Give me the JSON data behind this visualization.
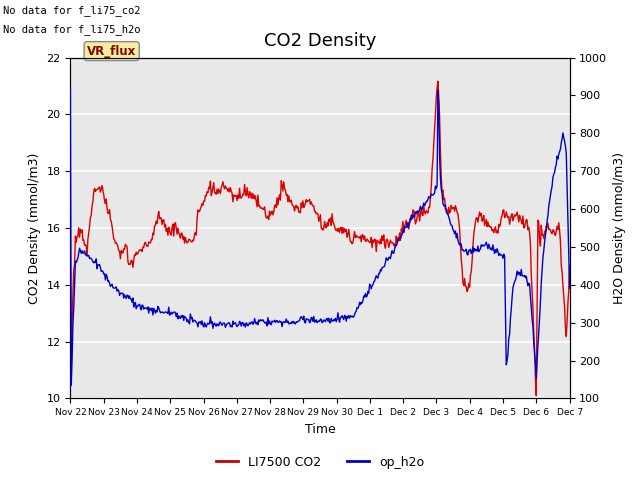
{
  "title": "CO2 Density",
  "xlabel": "Time",
  "ylabel_left": "CO2 Density (mmol/m3)",
  "ylabel_right": "H2O Density (mmol/m3)",
  "ylim_left": [
    10,
    22
  ],
  "ylim_right": [
    100,
    1000
  ],
  "yticks_left": [
    10,
    12,
    14,
    16,
    18,
    20,
    22
  ],
  "yticks_right": [
    100,
    200,
    300,
    400,
    500,
    600,
    700,
    800,
    900,
    1000
  ],
  "xtick_labels": [
    "Nov 22",
    "Nov 23",
    "Nov 24",
    "Nov 25",
    "Nov 26",
    "Nov 27",
    "Nov 28",
    "Nov 29",
    "Nov 30",
    "Dec 1",
    "Dec 2",
    "Dec 3",
    "Dec 4",
    "Dec 5",
    "Dec 6",
    "Dec 7"
  ],
  "text_top_left": [
    "No data for f_li75_co2",
    "No data for f_li75_h2o"
  ],
  "vr_flux_label": "VR_flux",
  "legend_entries": [
    "LI7500 CO2",
    "op_h2o"
  ],
  "legend_colors": [
    "#cc0000",
    "#0000cc"
  ],
  "line_color_co2": "#dd0000",
  "line_color_h2o": "#0000cc",
  "background_color": "#e8e8e8",
  "title_fontsize": 13,
  "label_fontsize": 9,
  "tick_fontsize": 8,
  "co2_kx": [
    0,
    0.02,
    0.08,
    0.15,
    0.3,
    0.5,
    0.7,
    0.85,
    1.0,
    1.1,
    1.2,
    1.35,
    1.5,
    1.65,
    1.8,
    2.0,
    2.2,
    2.4,
    2.5,
    2.65,
    2.8,
    3.0,
    3.15,
    3.3,
    3.5,
    3.7,
    3.85,
    4.0,
    4.2,
    4.4,
    4.6,
    4.8,
    5.0,
    5.15,
    5.3,
    5.5,
    5.7,
    5.85,
    6.0,
    6.2,
    6.35,
    6.5,
    6.65,
    6.8,
    7.0,
    7.2,
    7.4,
    7.6,
    7.8,
    8.0,
    8.3,
    8.6,
    8.9,
    9.2,
    9.5,
    9.8,
    10.0,
    10.3,
    10.5,
    10.8,
    11.0,
    11.05,
    11.15,
    11.3,
    11.5,
    11.65,
    11.8,
    12.0,
    12.15,
    12.3,
    12.5,
    12.65,
    12.8,
    13.0,
    13.2,
    13.4,
    13.6,
    13.8,
    14.0,
    14.05,
    14.1,
    14.3,
    14.5,
    14.7,
    14.9,
    15.0
  ],
  "co2_ky": [
    14.5,
    11.5,
    14.0,
    15.5,
    16.0,
    15.2,
    17.3,
    17.5,
    17.2,
    16.7,
    16.3,
    15.5,
    15.0,
    15.3,
    14.7,
    15.1,
    15.3,
    15.5,
    15.8,
    16.5,
    16.2,
    15.8,
    16.0,
    15.8,
    15.5,
    15.5,
    16.5,
    17.0,
    17.4,
    17.2,
    17.5,
    17.2,
    17.0,
    17.3,
    17.3,
    17.0,
    16.8,
    16.5,
    16.5,
    16.8,
    17.5,
    17.2,
    16.8,
    16.6,
    16.8,
    17.0,
    16.5,
    16.0,
    16.2,
    16.0,
    15.8,
    15.7,
    15.6,
    15.5,
    15.5,
    15.5,
    16.0,
    16.4,
    16.5,
    16.6,
    20.5,
    21.5,
    17.5,
    16.5,
    16.8,
    16.5,
    14.0,
    14.0,
    16.0,
    16.5,
    16.3,
    16.0,
    15.8,
    16.5,
    16.2,
    16.5,
    16.3,
    16.0,
    10.0,
    16.5,
    15.5,
    16.0,
    15.8,
    16.0,
    12.0,
    14.5
  ],
  "h2o_kx": [
    0,
    0.02,
    0.08,
    0.15,
    0.3,
    0.5,
    0.7,
    0.85,
    1.0,
    1.2,
    1.5,
    1.8,
    2.0,
    2.3,
    2.6,
    2.9,
    3.2,
    3.5,
    3.8,
    4.0,
    4.3,
    4.6,
    5.0,
    5.5,
    6.0,
    6.5,
    7.0,
    7.5,
    8.0,
    8.5,
    9.0,
    9.5,
    9.8,
    10.0,
    10.2,
    10.5,
    10.8,
    11.0,
    11.02,
    11.05,
    11.1,
    11.2,
    11.5,
    11.8,
    12.0,
    12.2,
    12.5,
    12.8,
    13.0,
    13.05,
    13.1,
    13.3,
    13.5,
    13.8,
    14.0,
    14.2,
    14.4,
    14.5,
    14.6,
    14.7,
    14.8,
    14.9,
    15.0
  ],
  "h2o_ky": [
    920,
    120,
    300,
    460,
    490,
    480,
    465,
    450,
    430,
    400,
    380,
    365,
    345,
    335,
    330,
    330,
    320,
    310,
    300,
    295,
    295,
    295,
    295,
    300,
    305,
    300,
    310,
    305,
    310,
    315,
    390,
    460,
    500,
    540,
    570,
    600,
    630,
    655,
    660,
    980,
    700,
    615,
    550,
    490,
    490,
    495,
    505,
    490,
    480,
    480,
    165,
    400,
    440,
    400,
    160,
    480,
    620,
    680,
    720,
    750,
    800,
    750,
    400
  ]
}
